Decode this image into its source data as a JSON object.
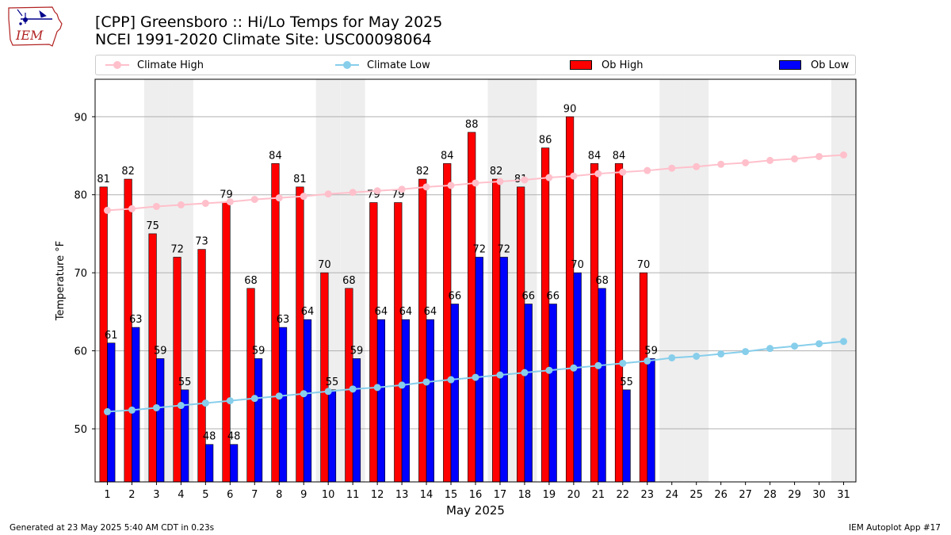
{
  "logo": {
    "text": "IEM"
  },
  "header": {
    "title_line1": "[CPP] Greensboro :: Hi/Lo Temps for May 2025",
    "title_line2": "NCEI 1991-2020 Climate Site: USC00098064"
  },
  "legend": {
    "climate_high": "Climate High",
    "climate_low": "Climate Low",
    "ob_high": "Ob High",
    "ob_low": "Ob Low"
  },
  "footer": {
    "left": "Generated at 23 May 2025 5:40 AM CDT in 0.23s",
    "right": "IEM Autoplot App #17"
  },
  "chart_data": {
    "type": "bar",
    "title": "[CPP] Greensboro :: Hi/Lo Temps for May 2025",
    "subtitle": "NCEI 1991-2020 Climate Site: USC00098064",
    "xlabel": "May 2025",
    "ylabel": "Temperature °F",
    "xlim": [
      0.5,
      31.5
    ],
    "ylim": [
      43.2,
      94.8
    ],
    "yticks": [
      50,
      60,
      70,
      80,
      90
    ],
    "grid": "horizontal",
    "legend_position": "top",
    "weekend_days": [
      3,
      4,
      10,
      11,
      17,
      18,
      24,
      25,
      31
    ],
    "colors": {
      "ob_high": "#ff0000",
      "ob_low": "#0000ff",
      "climate_high": "#ffc0cb",
      "climate_low": "#87ceeb",
      "weekend_shade": "#eeeeee",
      "grid": "#b0b0b0"
    },
    "days": [
      1,
      2,
      3,
      4,
      5,
      6,
      7,
      8,
      9,
      10,
      11,
      12,
      13,
      14,
      15,
      16,
      17,
      18,
      19,
      20,
      21,
      22,
      23,
      24,
      25,
      26,
      27,
      28,
      29,
      30,
      31
    ],
    "ob_high": [
      81,
      82,
      75,
      72,
      73,
      79,
      68,
      84,
      81,
      70,
      68,
      79,
      79,
      82,
      84,
      88,
      82,
      81,
      86,
      90,
      84,
      84,
      70
    ],
    "ob_low": [
      61,
      63,
      59,
      55,
      48,
      48,
      59,
      63,
      64,
      55,
      59,
      64,
      64,
      64,
      66,
      72,
      72,
      66,
      66,
      70,
      68,
      55,
      59
    ],
    "ob_high_labels": [
      "81",
      "82",
      "75",
      "72",
      "73",
      "79",
      "68",
      "84",
      "81",
      "70",
      "68",
      "79",
      "79",
      "82",
      "84",
      "88",
      "82",
      "81",
      "86",
      "90",
      "84",
      "84",
      "70"
    ],
    "ob_low_labels": [
      "61",
      "63",
      "59",
      "55",
      "48",
      "48",
      "59",
      "63",
      "64",
      "55",
      "59",
      "64",
      "64",
      "64",
      "66",
      "72",
      "72",
      "66",
      "66",
      "70",
      "68",
      "55",
      "59"
    ],
    "climate_high": [
      78.0,
      78.2,
      78.5,
      78.7,
      78.9,
      79.1,
      79.4,
      79.6,
      79.8,
      80.1,
      80.3,
      80.5,
      80.7,
      81.0,
      81.2,
      81.5,
      81.7,
      81.9,
      82.2,
      82.4,
      82.7,
      82.9,
      83.1,
      83.4,
      83.6,
      83.9,
      84.1,
      84.4,
      84.6,
      84.9,
      85.1
    ],
    "climate_low": [
      52.2,
      52.4,
      52.7,
      53.0,
      53.3,
      53.6,
      53.9,
      54.2,
      54.5,
      54.8,
      55.1,
      55.3,
      55.6,
      56.0,
      56.3,
      56.6,
      56.9,
      57.2,
      57.5,
      57.8,
      58.1,
      58.4,
      58.7,
      59.1,
      59.3,
      59.6,
      59.9,
      60.3,
      60.6,
      60.9,
      61.2
    ]
  }
}
